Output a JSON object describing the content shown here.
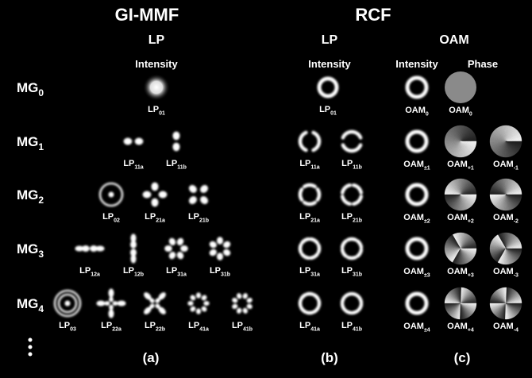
{
  "title_left": "GI-MMF",
  "title_right": "RCF",
  "subheads": [
    "LP",
    "LP",
    "OAM"
  ],
  "column_heads": [
    "Intensity",
    "Intensity",
    "Intensity",
    "Phase"
  ],
  "rows": [
    {
      "base": "MG",
      "sub": "0"
    },
    {
      "base": "MG",
      "sub": "1"
    },
    {
      "base": "MG",
      "sub": "2"
    },
    {
      "base": "MG",
      "sub": "3"
    },
    {
      "base": "MG",
      "sub": "4"
    }
  ],
  "modes": [
    {
      "base": "LP",
      "sub": "01"
    },
    {
      "base": "LP",
      "sub": "01"
    },
    {
      "base": "OAM",
      "sub": "0"
    },
    {
      "base": "OAM",
      "sub": "0"
    },
    {
      "base": "LP",
      "sub": "11a"
    },
    {
      "base": "LP",
      "sub": "11b"
    },
    {
      "base": "LP",
      "sub": "11a"
    },
    {
      "base": "LP",
      "sub": "11b"
    },
    {
      "base": "OAM",
      "sub": "±1"
    },
    {
      "base": "OAM",
      "sub": "+1"
    },
    {
      "base": "OAM",
      "sub": "-1"
    },
    {
      "base": "LP",
      "sub": "02"
    },
    {
      "base": "LP",
      "sub": "21a"
    },
    {
      "base": "LP",
      "sub": "21b"
    },
    {
      "base": "LP",
      "sub": "21a"
    },
    {
      "base": "LP",
      "sub": "21b"
    },
    {
      "base": "OAM",
      "sub": "±2"
    },
    {
      "base": "OAM",
      "sub": "+2"
    },
    {
      "base": "OAM",
      "sub": "-2"
    },
    {
      "base": "LP",
      "sub": "12a"
    },
    {
      "base": "LP",
      "sub": "12b"
    },
    {
      "base": "LP",
      "sub": "31a"
    },
    {
      "base": "LP",
      "sub": "31b"
    },
    {
      "base": "LP",
      "sub": "31a"
    },
    {
      "base": "LP",
      "sub": "31b"
    },
    {
      "base": "OAM",
      "sub": "±3"
    },
    {
      "base": "OAM",
      "sub": "+3"
    },
    {
      "base": "OAM",
      "sub": "-3"
    },
    {
      "base": "LP",
      "sub": "03"
    },
    {
      "base": "LP",
      "sub": "22a"
    },
    {
      "base": "LP",
      "sub": "22b"
    },
    {
      "base": "LP",
      "sub": "41a"
    },
    {
      "base": "LP",
      "sub": "41b"
    },
    {
      "base": "LP",
      "sub": "41a"
    },
    {
      "base": "LP",
      "sub": "41b"
    },
    {
      "base": "OAM",
      "sub": "±4"
    },
    {
      "base": "OAM",
      "sub": "+4"
    },
    {
      "base": "OAM",
      "sub": "-4"
    }
  ],
  "panels": [
    "(a)",
    "(b)",
    "(c)"
  ]
}
